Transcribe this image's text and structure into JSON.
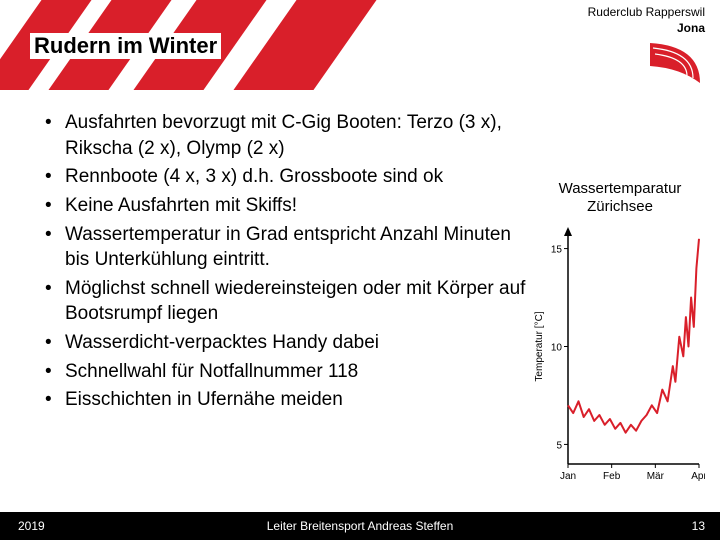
{
  "header": {
    "title": "Rudern im Winter",
    "club_line1": "Ruderclub Rapperswil",
    "club_line2": "Jona",
    "stripe_color": "#d91f2a"
  },
  "bullets": [
    "Ausfahrten bevorzugt mit C-Gig Booten: Terzo (3 x), Rikscha (2 x), Olymp (2 x)",
    "Rennboote (4 x, 3 x) d.h. Grossboote sind ok",
    "Keine Ausfahrten mit Skiffs!",
    "Wassertemperatur in Grad entspricht Anzahl Minuten bis Unterkühlung eintritt.",
    "Möglichst schnell wiedereinsteigen oder mit Körper auf Bootsrumpf liegen",
    "Wasserdicht-verpacktes Handy dabei",
    "Schnellwahl für Notfallnummer 118",
    "Eisschichten in Ufernähe meiden"
  ],
  "chart": {
    "title_line1": "Wassertemparatur",
    "title_line2": "Zürichsee",
    "type": "line",
    "ylabel": "Temperatur [°C]",
    "y_ticks": [
      "5",
      "10",
      "15"
    ],
    "x_ticks": [
      "Jan",
      "Feb",
      "Mär",
      "Apr"
    ],
    "ylim": [
      4,
      16
    ],
    "line_color": "#d91f2a",
    "line_width": 2,
    "axis_color": "#000000",
    "label_fontsize": 10,
    "tick_fontsize": 10,
    "background_color": "#ffffff",
    "series": [
      {
        "x": 0.0,
        "y": 7.0
      },
      {
        "x": 0.04,
        "y": 6.6
      },
      {
        "x": 0.08,
        "y": 7.2
      },
      {
        "x": 0.12,
        "y": 6.4
      },
      {
        "x": 0.16,
        "y": 6.8
      },
      {
        "x": 0.2,
        "y": 6.2
      },
      {
        "x": 0.24,
        "y": 6.5
      },
      {
        "x": 0.28,
        "y": 6.0
      },
      {
        "x": 0.32,
        "y": 6.3
      },
      {
        "x": 0.36,
        "y": 5.8
      },
      {
        "x": 0.4,
        "y": 6.1
      },
      {
        "x": 0.44,
        "y": 5.6
      },
      {
        "x": 0.48,
        "y": 6.0
      },
      {
        "x": 0.52,
        "y": 5.7
      },
      {
        "x": 0.56,
        "y": 6.2
      },
      {
        "x": 0.6,
        "y": 6.5
      },
      {
        "x": 0.64,
        "y": 7.0
      },
      {
        "x": 0.68,
        "y": 6.6
      },
      {
        "x": 0.72,
        "y": 7.8
      },
      {
        "x": 0.76,
        "y": 7.2
      },
      {
        "x": 0.8,
        "y": 9.0
      },
      {
        "x": 0.82,
        "y": 8.2
      },
      {
        "x": 0.85,
        "y": 10.5
      },
      {
        "x": 0.88,
        "y": 9.5
      },
      {
        "x": 0.9,
        "y": 11.5
      },
      {
        "x": 0.92,
        "y": 10.0
      },
      {
        "x": 0.94,
        "y": 12.5
      },
      {
        "x": 0.96,
        "y": 11.0
      },
      {
        "x": 0.98,
        "y": 14.0
      },
      {
        "x": 1.0,
        "y": 15.5
      }
    ]
  },
  "footer": {
    "year": "2019",
    "center": "Leiter Breitensport Andreas Steffen",
    "page": "13"
  },
  "colors": {
    "brand_red": "#d91f2a",
    "footer_bg": "#000000",
    "footer_text": "#ffffff",
    "text": "#000000"
  }
}
